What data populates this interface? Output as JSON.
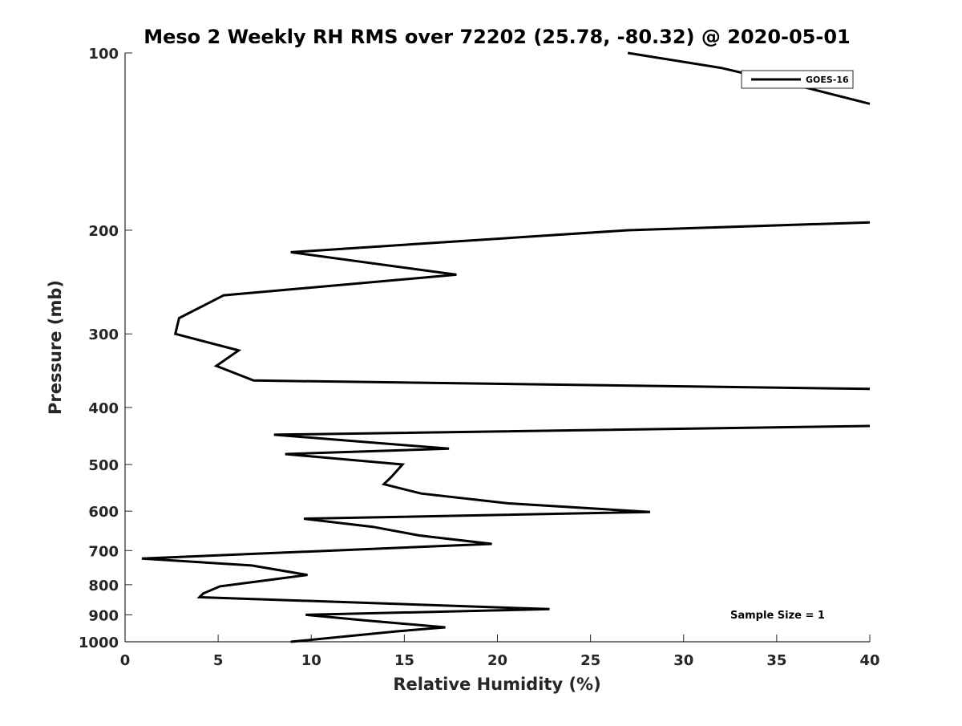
{
  "chart_data": {
    "type": "line",
    "title": "Meso 2 Weekly RH RMS over 72202 (25.78, -80.32) @ 2020-05-01",
    "xlabel": "Relative Humidity (%)",
    "ylabel": "Pressure (mb)",
    "xlim": [
      0,
      40
    ],
    "ylim": [
      1000,
      100
    ],
    "yscale": "log",
    "grid": false,
    "xticks": [
      0,
      5,
      10,
      15,
      20,
      25,
      30,
      35,
      40
    ],
    "xtick_labels": [
      "0",
      "5",
      "10",
      "15",
      "20",
      "25",
      "30",
      "35",
      "40"
    ],
    "yticks": [
      100,
      200,
      300,
      400,
      500,
      600,
      700,
      800,
      900,
      1000
    ],
    "ytick_labels": [
      "100",
      "200",
      "300",
      "400",
      "500",
      "600",
      "700",
      "800",
      "900",
      "1000"
    ],
    "legend": {
      "placement": "top-right",
      "entries": [
        "GOES-16"
      ]
    },
    "annotation": "Sample Size = 1",
    "series": [
      {
        "name": "GOES-16",
        "color": "#000000",
        "segments": [
          {
            "x": [
              27.0,
              32.0,
              36.8,
              40.0
            ],
            "y": [
              100,
              106,
              115,
              122
            ]
          },
          {
            "x": [
              40.0,
              27.0,
              8.9,
              17.8,
              5.3,
              2.9,
              2.7,
              6.1,
              4.9,
              6.9,
              40.0
            ],
            "y": [
              194,
              200,
              218,
              238,
              258,
              282,
              300,
              320,
              340,
              360,
              372
            ]
          },
          {
            "x": [
              40.0,
              8.0,
              17.4,
              8.6,
              14.9,
              14.3,
              13.9,
              15.9,
              20.6,
              28.2,
              9.6,
              13.3,
              15.8,
              19.7,
              0.9,
              6.8,
              9.8,
              7.1,
              5.1,
              4.2,
              4.0,
              22.8,
              9.7,
              12.9,
              17.2,
              14.6,
              8.9
            ],
            "y": [
              430,
              445,
              470,
              480,
              500,
              525,
              540,
              560,
              582,
              602,
              618,
              638,
              660,
              682,
              722,
              742,
              770,
              790,
              805,
              828,
              840,
              880,
              900,
              920,
              945,
              960,
              1000
            ]
          }
        ]
      }
    ]
  }
}
